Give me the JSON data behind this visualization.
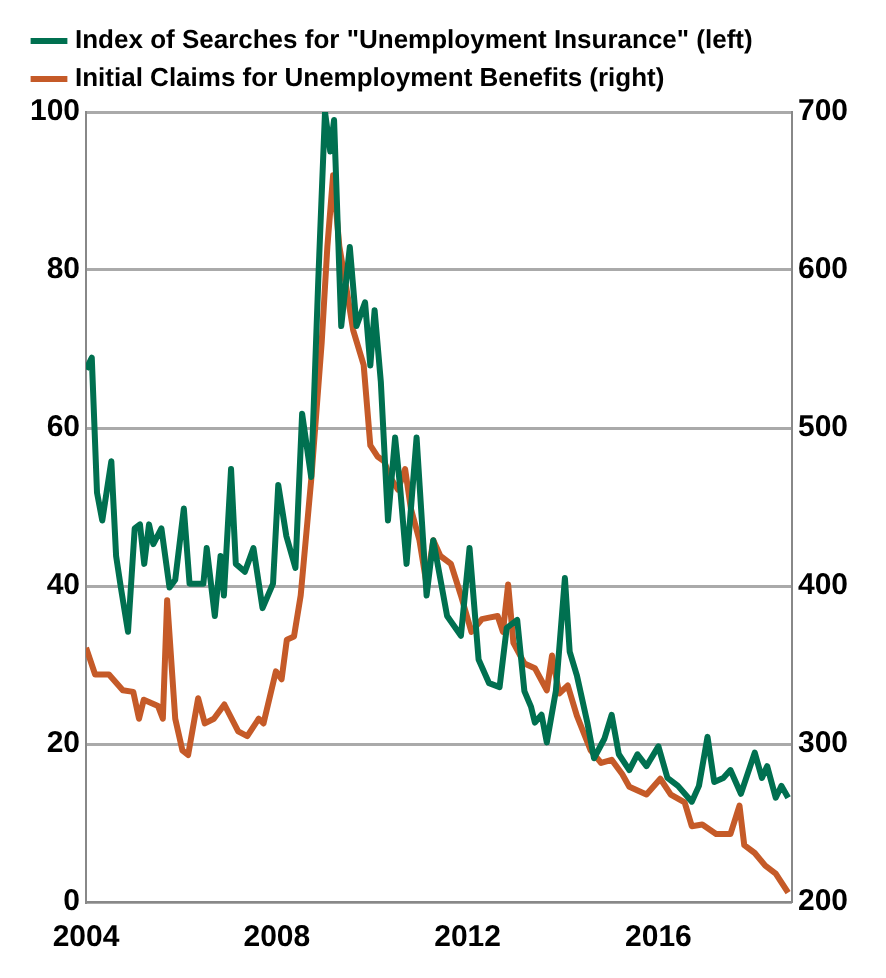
{
  "chart_data": {
    "type": "line",
    "legend": "top left",
    "grid": "y",
    "marker": "none",
    "line_style": "solid",
    "xlim": [
      2004,
      2018.8
    ],
    "xticks": [
      2004,
      2008,
      2012,
      2016
    ],
    "ylim": [
      0,
      100
    ],
    "yticks": [
      0,
      20,
      40,
      60,
      80,
      100
    ],
    "y2lim": [
      200,
      700
    ],
    "y2ticks": [
      200,
      300,
      400,
      500,
      600,
      700
    ],
    "series": [
      {
        "name": "Index of Searches for \"Unemployment Insurance\" (left)",
        "color": "#007050",
        "x": [
          2004.0,
          2004.12,
          2004.23,
          2004.34,
          2004.53,
          2004.63,
          2004.73,
          2004.88,
          2005.02,
          2005.13,
          2005.22,
          2005.32,
          2005.41,
          2005.58,
          2005.75,
          2005.87,
          2006.05,
          2006.17,
          2006.46,
          2006.53,
          2006.7,
          2006.82,
          2006.89,
          2007.04,
          2007.14,
          2007.33,
          2007.51,
          2007.7,
          2007.92,
          2008.03,
          2008.2,
          2008.39,
          2008.53,
          2008.72,
          2008.87,
          2009.01,
          2009.12,
          2009.2,
          2009.35,
          2009.53,
          2009.67,
          2009.85,
          2009.96,
          2010.05,
          2010.18,
          2010.33,
          2010.48,
          2010.58,
          2010.72,
          2010.93,
          2011.14,
          2011.28,
          2011.57,
          2011.86,
          2012.04,
          2012.23,
          2012.45,
          2012.67,
          2012.82,
          2013.04,
          2013.19,
          2013.33,
          2013.41,
          2013.55,
          2013.66,
          2013.85,
          2014.04,
          2014.14,
          2014.29,
          2014.51,
          2014.65,
          2014.87,
          2015.02,
          2015.17,
          2015.39,
          2015.56,
          2015.75,
          2016.0,
          2016.19,
          2016.41,
          2016.7,
          2016.85,
          2017.03,
          2017.17,
          2017.36,
          2017.51,
          2017.73,
          2018.02,
          2018.17,
          2018.28,
          2018.46,
          2018.58,
          2018.72
        ],
        "values": [
          67.4,
          68.9,
          51.8,
          48.3,
          55.8,
          43.8,
          39.8,
          34.2,
          47.3,
          47.8,
          42.8,
          47.8,
          45.3,
          47.3,
          39.8,
          40.8,
          49.8,
          40.3,
          40.3,
          44.8,
          36.2,
          43.8,
          38.8,
          54.8,
          42.8,
          41.8,
          44.8,
          37.2,
          40.3,
          52.8,
          46.3,
          42.3,
          61.8,
          53.8,
          78.9,
          100,
          95,
          99,
          72.9,
          82.9,
          72.9,
          75.9,
          67.9,
          74.9,
          65.9,
          48.3,
          58.8,
          52.8,
          42.8,
          58.8,
          38.8,
          45.8,
          36.2,
          33.7,
          44.8,
          30.7,
          27.7,
          27.2,
          34.7,
          35.7,
          26.7,
          24.7,
          22.7,
          23.7,
          20.2,
          26.7,
          41,
          31.7,
          28.7,
          22.7,
          18.2,
          20.7,
          23.7,
          18.7,
          16.7,
          18.7,
          17.2,
          19.7,
          15.7,
          14.7,
          12.7,
          14.7,
          20.9,
          15.2,
          15.7,
          16.7,
          13.7,
          18.9,
          15.7,
          17.2,
          13.2,
          14.7,
          13.2
        ]
      },
      {
        "name": "Initial Claims for Unemployment Benefits (right)",
        "color": "#c55a28",
        "axis": "y2",
        "x": [
          2004.0,
          2004.19,
          2004.48,
          2004.77,
          2004.99,
          2005.11,
          2005.21,
          2005.51,
          2005.61,
          2005.7,
          2005.87,
          2006.02,
          2006.14,
          2006.35,
          2006.49,
          2006.68,
          2006.9,
          2007.19,
          2007.38,
          2007.62,
          2007.72,
          2007.98,
          2008.1,
          2008.21,
          2008.36,
          2008.5,
          2008.72,
          2008.94,
          2009.06,
          2009.18,
          2009.31,
          2009.45,
          2009.6,
          2009.82,
          2009.96,
          2010.11,
          2010.25,
          2010.37,
          2010.54,
          2010.69,
          2010.81,
          2010.99,
          2011.14,
          2011.28,
          2011.43,
          2011.65,
          2011.86,
          2012.08,
          2012.3,
          2012.45,
          2012.63,
          2012.74,
          2012.85,
          2012.96,
          2013.19,
          2013.41,
          2013.66,
          2013.77,
          2013.92,
          2014.1,
          2014.29,
          2014.58,
          2014.8,
          2015.02,
          2015.24,
          2015.39,
          2015.75,
          2016.04,
          2016.26,
          2016.55,
          2016.7,
          2016.92,
          2017.21,
          2017.51,
          2017.7,
          2017.8,
          2018.02,
          2018.24,
          2018.46,
          2018.72
        ],
        "values": [
          361,
          344,
          344,
          334,
          333,
          316,
          328,
          324,
          316,
          391,
          316,
          296,
          293,
          329,
          313,
          316,
          325,
          308,
          305,
          316,
          313,
          346,
          341,
          366,
          368,
          394,
          467,
          554,
          615,
          660,
          615,
          590,
          562,
          540,
          489,
          482,
          479,
          469,
          461,
          474,
          449,
          429,
          401,
          429,
          419,
          414,
          394,
          371,
          379,
          380,
          381,
          371,
          401,
          364,
          351,
          348,
          334,
          356,
          332,
          337,
          318,
          296,
          288,
          290,
          281,
          273,
          268,
          278,
          268,
          263,
          248,
          249,
          243,
          243,
          261,
          236,
          231,
          223,
          218,
          206
        ]
      }
    ]
  }
}
